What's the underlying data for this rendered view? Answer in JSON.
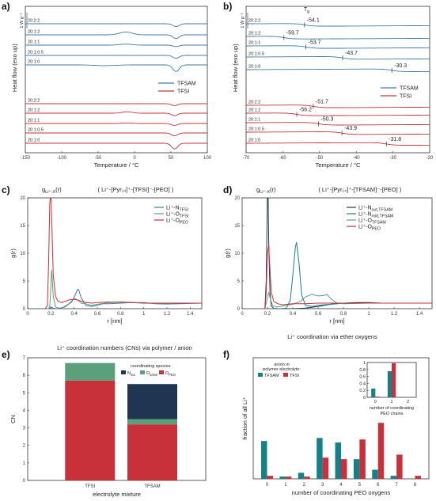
{
  "colors": {
    "blue": "#3b7ba6",
    "red": "#c8303a",
    "teal": "#158087",
    "green": "#5aa07a",
    "navy": "#1f3552",
    "darkred": "#8b1a1a"
  },
  "panels": {
    "a": {
      "label": "a)"
    },
    "b": {
      "label": "b)"
    },
    "c": {
      "label": "c)"
    },
    "d": {
      "label": "d)"
    },
    "e": {
      "label": "e)"
    },
    "f": {
      "label": "f)"
    }
  },
  "chart_data": [
    {
      "type": "line",
      "panel": "a",
      "xlabel": "Temperature / °C",
      "ylabel": "Heat flow (exo up)",
      "xlim": [
        -150,
        100
      ],
      "xticks": [
        -150,
        -100,
        -50,
        0,
        50,
        100
      ],
      "scalebar": "1 W g⁻¹",
      "legend": [
        "TFSAM",
        "TFSI"
      ],
      "series": [
        {
          "name": "20:2:2",
          "group": "TFSAM",
          "offset": 0
        },
        {
          "name": "20:1:2",
          "group": "TFSAM",
          "offset": 1
        },
        {
          "name": "20:1:1",
          "group": "TFSAM",
          "offset": 2
        },
        {
          "name": "20:1:0.5",
          "group": "TFSAM",
          "offset": 3
        },
        {
          "name": "20:1:0",
          "group": "TFSAM",
          "offset": 4
        },
        {
          "name": "20:2:2",
          "group": "TFSI",
          "offset": 5
        },
        {
          "name": "20:1:2",
          "group": "TFSI",
          "offset": 6
        },
        {
          "name": "20:1:1",
          "group": "TFSI",
          "offset": 7
        },
        {
          "name": "20:1:0.5",
          "group": "TFSI",
          "offset": 8
        },
        {
          "name": "20:1:0",
          "group": "TFSI",
          "offset": 9
        }
      ]
    },
    {
      "type": "line",
      "panel": "b",
      "xlabel": "Temperature / °C",
      "ylabel": "Heat flow (exo up)",
      "xlim": [
        -70,
        -20
      ],
      "xticks": [
        -70,
        -60,
        -50,
        -40,
        -30,
        -20
      ],
      "scalebar": "1 W g⁻¹",
      "tg_symbol": "T",
      "tg_sub": "g",
      "legend": [
        "TFSAM",
        "TFSI"
      ],
      "series": [
        {
          "name": "20:2:2",
          "group": "TFSAM",
          "tg": -54.1
        },
        {
          "name": "20:1:2",
          "group": "TFSAM",
          "tg": -59.7
        },
        {
          "name": "20:1:1",
          "group": "TFSAM",
          "tg": -53.7
        },
        {
          "name": "20:1:0.5",
          "group": "TFSAM",
          "tg": -43.7
        },
        {
          "name": "20:1:0",
          "group": "TFSAM",
          "tg": -30.3
        },
        {
          "name": "20:2:2",
          "group": "TFSI",
          "tg": -51.7
        },
        {
          "name": "20:1:2",
          "group": "TFSI",
          "tg": -56.2
        },
        {
          "name": "20:1:1",
          "group": "TFSI",
          "tg": -50.3
        },
        {
          "name": "20:1:0.5",
          "group": "TFSI",
          "tg": -43.9
        },
        {
          "name": "20:1:0",
          "group": "TFSI",
          "tg": -31.8
        }
      ]
    },
    {
      "type": "line",
      "panel": "c",
      "title_left": "g",
      "title_left_sub": "Li⁺-X",
      "title_left_tail": "(r)",
      "title_right": "( Li⁺-[Pyr₁₄]⁺-[TFSI]⁻-[PEO] )",
      "xlabel": "r [nm]",
      "ylabel": "g(r)",
      "xlim": [
        0,
        1.5
      ],
      "ylim": [
        0,
        20
      ],
      "xticks": [
        0,
        0.2,
        0.4,
        0.6,
        0.8,
        1,
        1.2,
        1.4
      ],
      "yticks": [
        0,
        5,
        10,
        15,
        20
      ],
      "series": [
        {
          "name": "Li⁺-N",
          "sub": "TFSI",
          "color": "blue",
          "x": [
            0.15,
            0.18,
            0.19,
            0.2,
            0.21,
            0.22,
            0.24,
            0.27,
            0.32,
            0.38,
            0.41,
            0.43,
            0.44,
            0.46,
            0.5,
            0.55,
            0.6,
            0.65,
            0.7,
            0.8,
            0.9,
            1.0,
            1.1,
            1.2,
            1.3,
            1.4,
            1.5
          ],
          "y": [
            0,
            0,
            0.1,
            0.3,
            0.2,
            0.1,
            0,
            0.05,
            0.3,
            1.2,
            2.5,
            3.5,
            3.4,
            2.0,
            0.6,
            0.4,
            0.6,
            0.9,
            0.9,
            1.0,
            1.1,
            1.1,
            0.9,
            0.85,
            0.9,
            0.95,
            1.0
          ]
        },
        {
          "name": "Li⁺-O",
          "sub": "TFSI",
          "color": "green",
          "x": [
            0.15,
            0.18,
            0.19,
            0.2,
            0.205,
            0.21,
            0.22,
            0.24,
            0.27,
            0.3,
            0.35,
            0.4,
            0.43,
            0.46,
            0.5,
            0.55,
            0.6,
            0.7,
            0.8,
            0.9,
            1.0,
            1.1,
            1.2,
            1.3,
            1.4,
            1.5
          ],
          "y": [
            0,
            0,
            0.5,
            4,
            7,
            6,
            2.2,
            0.3,
            0.1,
            0.2,
            0.8,
            1.8,
            1.6,
            1.0,
            0.9,
            0.6,
            0.8,
            1.1,
            1.2,
            1.1,
            1.0,
            0.95,
            0.95,
            1.0,
            1.0,
            1.0
          ]
        },
        {
          "name": "Li⁺-O",
          "sub": "PEO",
          "color": "red",
          "x": [
            0.15,
            0.17,
            0.18,
            0.19,
            0.2,
            0.21,
            0.22,
            0.24,
            0.26,
            0.29,
            0.32,
            0.36,
            0.4,
            0.44,
            0.48,
            0.55,
            0.6,
            0.7,
            0.8,
            0.9,
            1.0,
            1.1,
            1.2,
            1.3,
            1.4,
            1.5
          ],
          "y": [
            0,
            0.5,
            8,
            19,
            21,
            14,
            6,
            2.2,
            1.4,
            1.1,
            1.3,
            1.6,
            1.7,
            1.5,
            1.2,
            1.0,
            1.1,
            1.2,
            1.2,
            1.1,
            1.0,
            1.0,
            1.0,
            1.0,
            1.0,
            1.0
          ]
        }
      ]
    },
    {
      "type": "line",
      "panel": "d",
      "title_left": "g",
      "title_left_sub": "Li⁺-X",
      "title_left_tail": "(r)",
      "title_right": "( Li⁺-[Pyr₁₄]⁺-[TFSAM]⁻-[PEO] )",
      "xlabel": "r [nm]",
      "ylabel": "g(r)",
      "xlim": [
        0,
        1.5
      ],
      "ylim": [
        0,
        20
      ],
      "xticks": [
        0,
        0.2,
        0.4,
        0.6,
        0.8,
        1,
        1.2,
        1.4
      ],
      "yticks": [
        0,
        5,
        10,
        15,
        20
      ],
      "series": [
        {
          "name": "Li⁺-N",
          "sub": "out,TFSAM",
          "color": "navy",
          "x": [
            0.15,
            0.18,
            0.19,
            0.2,
            0.205,
            0.21,
            0.22,
            0.23,
            0.25,
            0.3,
            0.4,
            0.5,
            0.6,
            0.7,
            0.8,
            0.9,
            1.0,
            1.1,
            1.2,
            1.3,
            1.4,
            1.5
          ],
          "y": [
            0,
            0,
            5,
            21,
            21,
            12,
            3,
            0.5,
            0.05,
            0,
            0,
            0.1,
            0.4,
            0.8,
            1.0,
            1.1,
            1.1,
            1.0,
            1.0,
            1.0,
            1.0,
            1.0
          ]
        },
        {
          "name": "Li⁺-N",
          "sub": "mid,TFSAM",
          "color": "teal",
          "x": [
            0.15,
            0.2,
            0.25,
            0.3,
            0.35,
            0.38,
            0.4,
            0.42,
            0.43,
            0.45,
            0.47,
            0.5,
            0.55,
            0.6,
            0.7,
            0.8,
            0.9,
            1.0,
            1.2,
            1.4,
            1.5
          ],
          "y": [
            0,
            0,
            0,
            0,
            0.1,
            1.5,
            6,
            11,
            12,
            8,
            2.5,
            0.6,
            0.4,
            0.6,
            0.8,
            1.0,
            1.0,
            1.0,
            1.0,
            1.0,
            1.0
          ]
        },
        {
          "name": "Li⁺-O",
          "sub": "TFSAM",
          "color": "green",
          "x": [
            0.15,
            0.18,
            0.2,
            0.21,
            0.22,
            0.24,
            0.27,
            0.3,
            0.35,
            0.4,
            0.45,
            0.5,
            0.55,
            0.6,
            0.65,
            0.67,
            0.7,
            0.75,
            0.8,
            0.9,
            1.0,
            1.2,
            1.4,
            1.5
          ],
          "y": [
            0,
            0,
            2,
            3,
            2,
            0.6,
            0.3,
            0.4,
            0.6,
            0.8,
            1.2,
            2.1,
            2.6,
            2.3,
            2.4,
            2.6,
            1.8,
            1.0,
            0.9,
            0.95,
            1.0,
            1.0,
            1.0,
            1.0
          ]
        },
        {
          "name": "Li⁺-O",
          "sub": "PEO",
          "color": "red",
          "x": [
            0.15,
            0.18,
            0.19,
            0.2,
            0.21,
            0.22,
            0.23,
            0.25,
            0.28,
            0.32,
            0.36,
            0.4,
            0.45,
            0.5,
            0.6,
            0.7,
            0.8,
            0.9,
            1.0,
            1.2,
            1.4,
            1.5
          ],
          "y": [
            0,
            0,
            3,
            10,
            11.5,
            7,
            3,
            1.3,
            0.9,
            0.7,
            0.8,
            0.9,
            0.9,
            0.9,
            1.0,
            1.0,
            1.0,
            1.0,
            1.0,
            1.0,
            1.0,
            1.0
          ]
        }
      ]
    },
    {
      "type": "bar",
      "panel": "e",
      "stacked": true,
      "title": "Li⁺ coordination numbers (CNs) via polymer / anion",
      "xlabel": "electrolyte mixture",
      "ylabel": "CN",
      "categories": [
        "TFSI",
        "TFSAM"
      ],
      "ylim": [
        0,
        7
      ],
      "yticks": [
        0,
        1,
        2,
        3,
        4,
        5,
        6,
        7
      ],
      "legend_title": "coordinating species:",
      "series": [
        {
          "name": "O",
          "sub": "PEO",
          "color": "red",
          "values": [
            5.7,
            3.2
          ]
        },
        {
          "name": "O",
          "sub": "anion",
          "color": "green",
          "values": [
            1.0,
            0.3
          ]
        },
        {
          "name": "N",
          "sub": "out",
          "color": "navy",
          "values": [
            0,
            2.0
          ]
        }
      ]
    },
    {
      "type": "bar",
      "panel": "f",
      "title": "Li⁺ coordination via ether oxygens",
      "xlabel": "number of coordinating PEO oxygens",
      "ylabel": "fraction of all Li⁺",
      "categories": [
        "0",
        "1",
        "2",
        "3",
        "4",
        "5",
        "6",
        "7",
        "8"
      ],
      "ylim": [
        0,
        0.8
      ],
      "legend_title": "anion in polymer electrolyte:",
      "series": [
        {
          "name": "TFSAM",
          "color": "teal",
          "values": [
            0.25,
            0.015,
            0.04,
            0.27,
            0.24,
            0.13,
            0.06,
            0.02,
            0.0
          ]
        },
        {
          "name": "TFSI",
          "color": "red",
          "values": [
            0.02,
            0.015,
            0.015,
            0.14,
            0.13,
            0.26,
            0.37,
            0.16,
            0.02
          ]
        }
      ],
      "inset": {
        "xlabel": "number of coordinating PEO chains",
        "categories": [
          "0",
          "1",
          "2"
        ],
        "ylim": [
          0,
          1
        ],
        "yticks": [
          0,
          0.2,
          0.4,
          0.6,
          0.8,
          1
        ],
        "series": [
          {
            "name": "TFSAM",
            "color": "teal",
            "values": [
              0.25,
              0.75,
              0.0
            ]
          },
          {
            "name": "TFSI",
            "color": "red",
            "values": [
              0.02,
              0.98,
              0.0
            ]
          }
        ]
      }
    }
  ]
}
